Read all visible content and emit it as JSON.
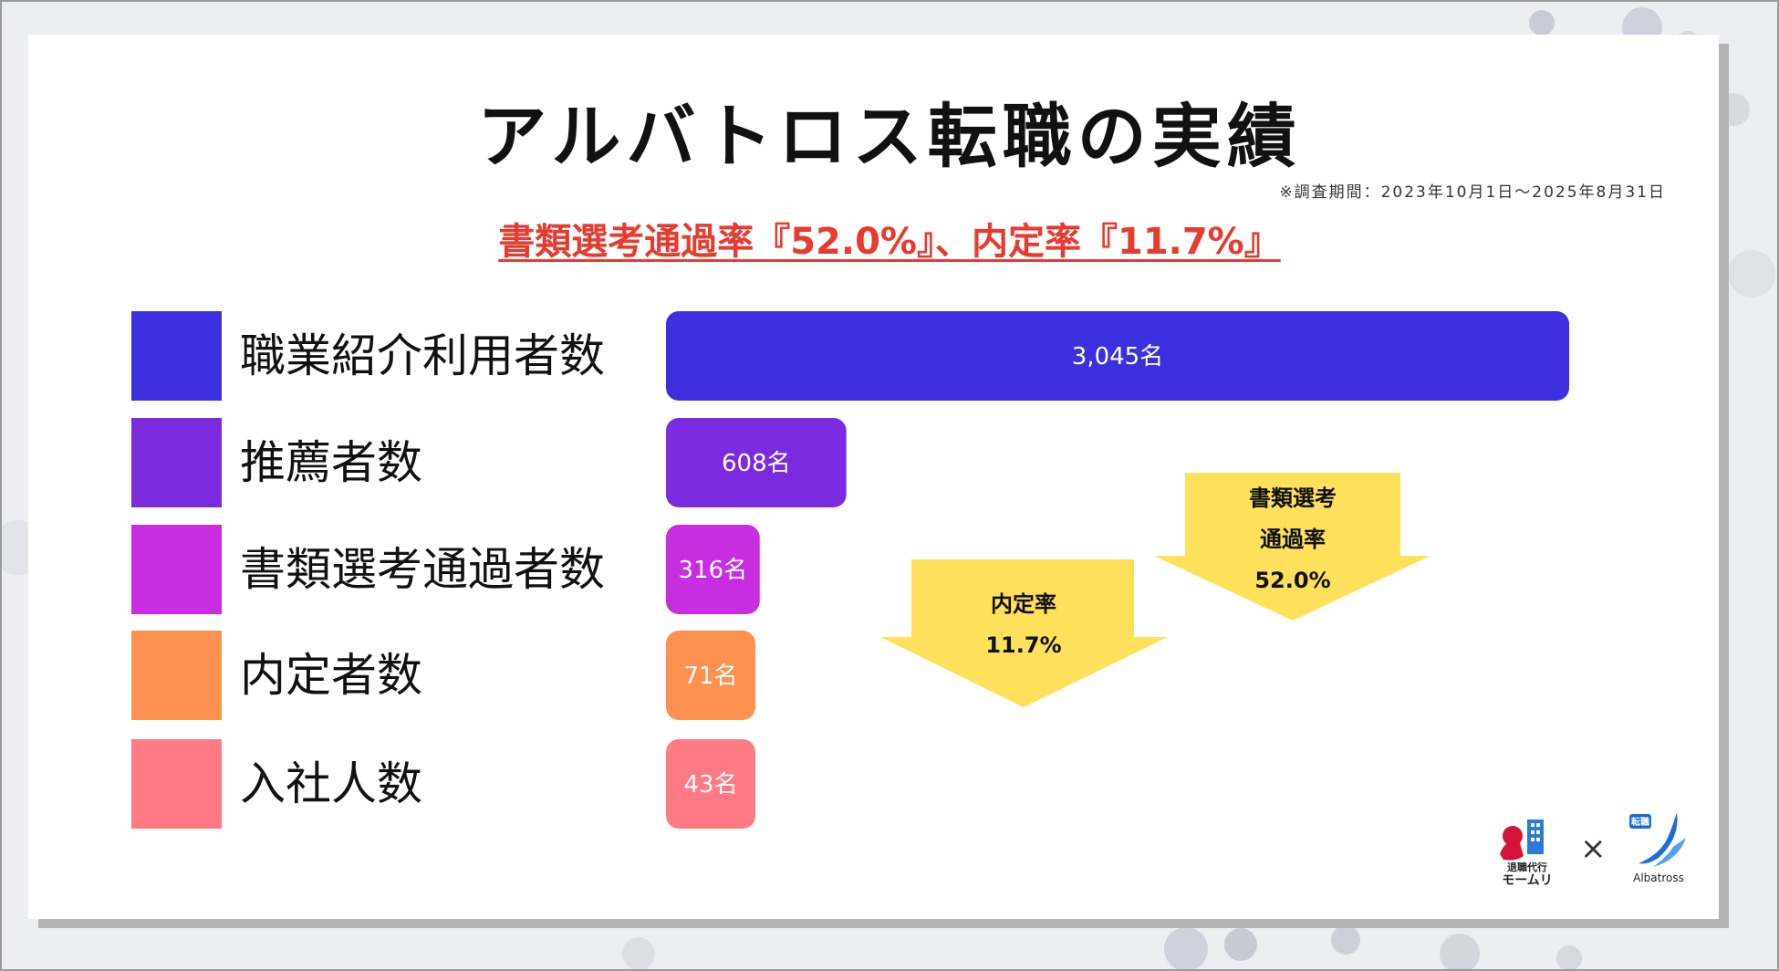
{
  "title": "アルバトロス転職の実績",
  "period_note": "※調査期間：2023年10月1日～2025年8月31日",
  "subtitle": "書類選考通過率『52.0%』、内定率『11.7%』",
  "chart_data": {
    "type": "bar",
    "orientation": "horizontal",
    "categories": [
      "職業紹介利用者数",
      "推薦者数",
      "書類選考通過者数",
      "内定者数",
      "入社人数"
    ],
    "values": [
      3045,
      608,
      316,
      71,
      43
    ],
    "value_labels": [
      "3,045名",
      "608名",
      "316名",
      "71名",
      "43名"
    ],
    "colors": [
      "#3d2ee0",
      "#7b2ae0",
      "#c62ee0",
      "#ff9150",
      "#ff7a85"
    ],
    "legend_placement": "left",
    "annotations": [
      {
        "lines": [
          "書類選考",
          "通過率",
          "52.0%"
        ],
        "color": "#fee05a"
      },
      {
        "lines": [
          "内定率",
          "11.7%"
        ],
        "color": "#fee05a"
      }
    ]
  },
  "logos": {
    "left_text": [
      "退職代行",
      "モームリ"
    ],
    "separator": "×",
    "right_badge": "転職",
    "right_text": "Albatross"
  }
}
